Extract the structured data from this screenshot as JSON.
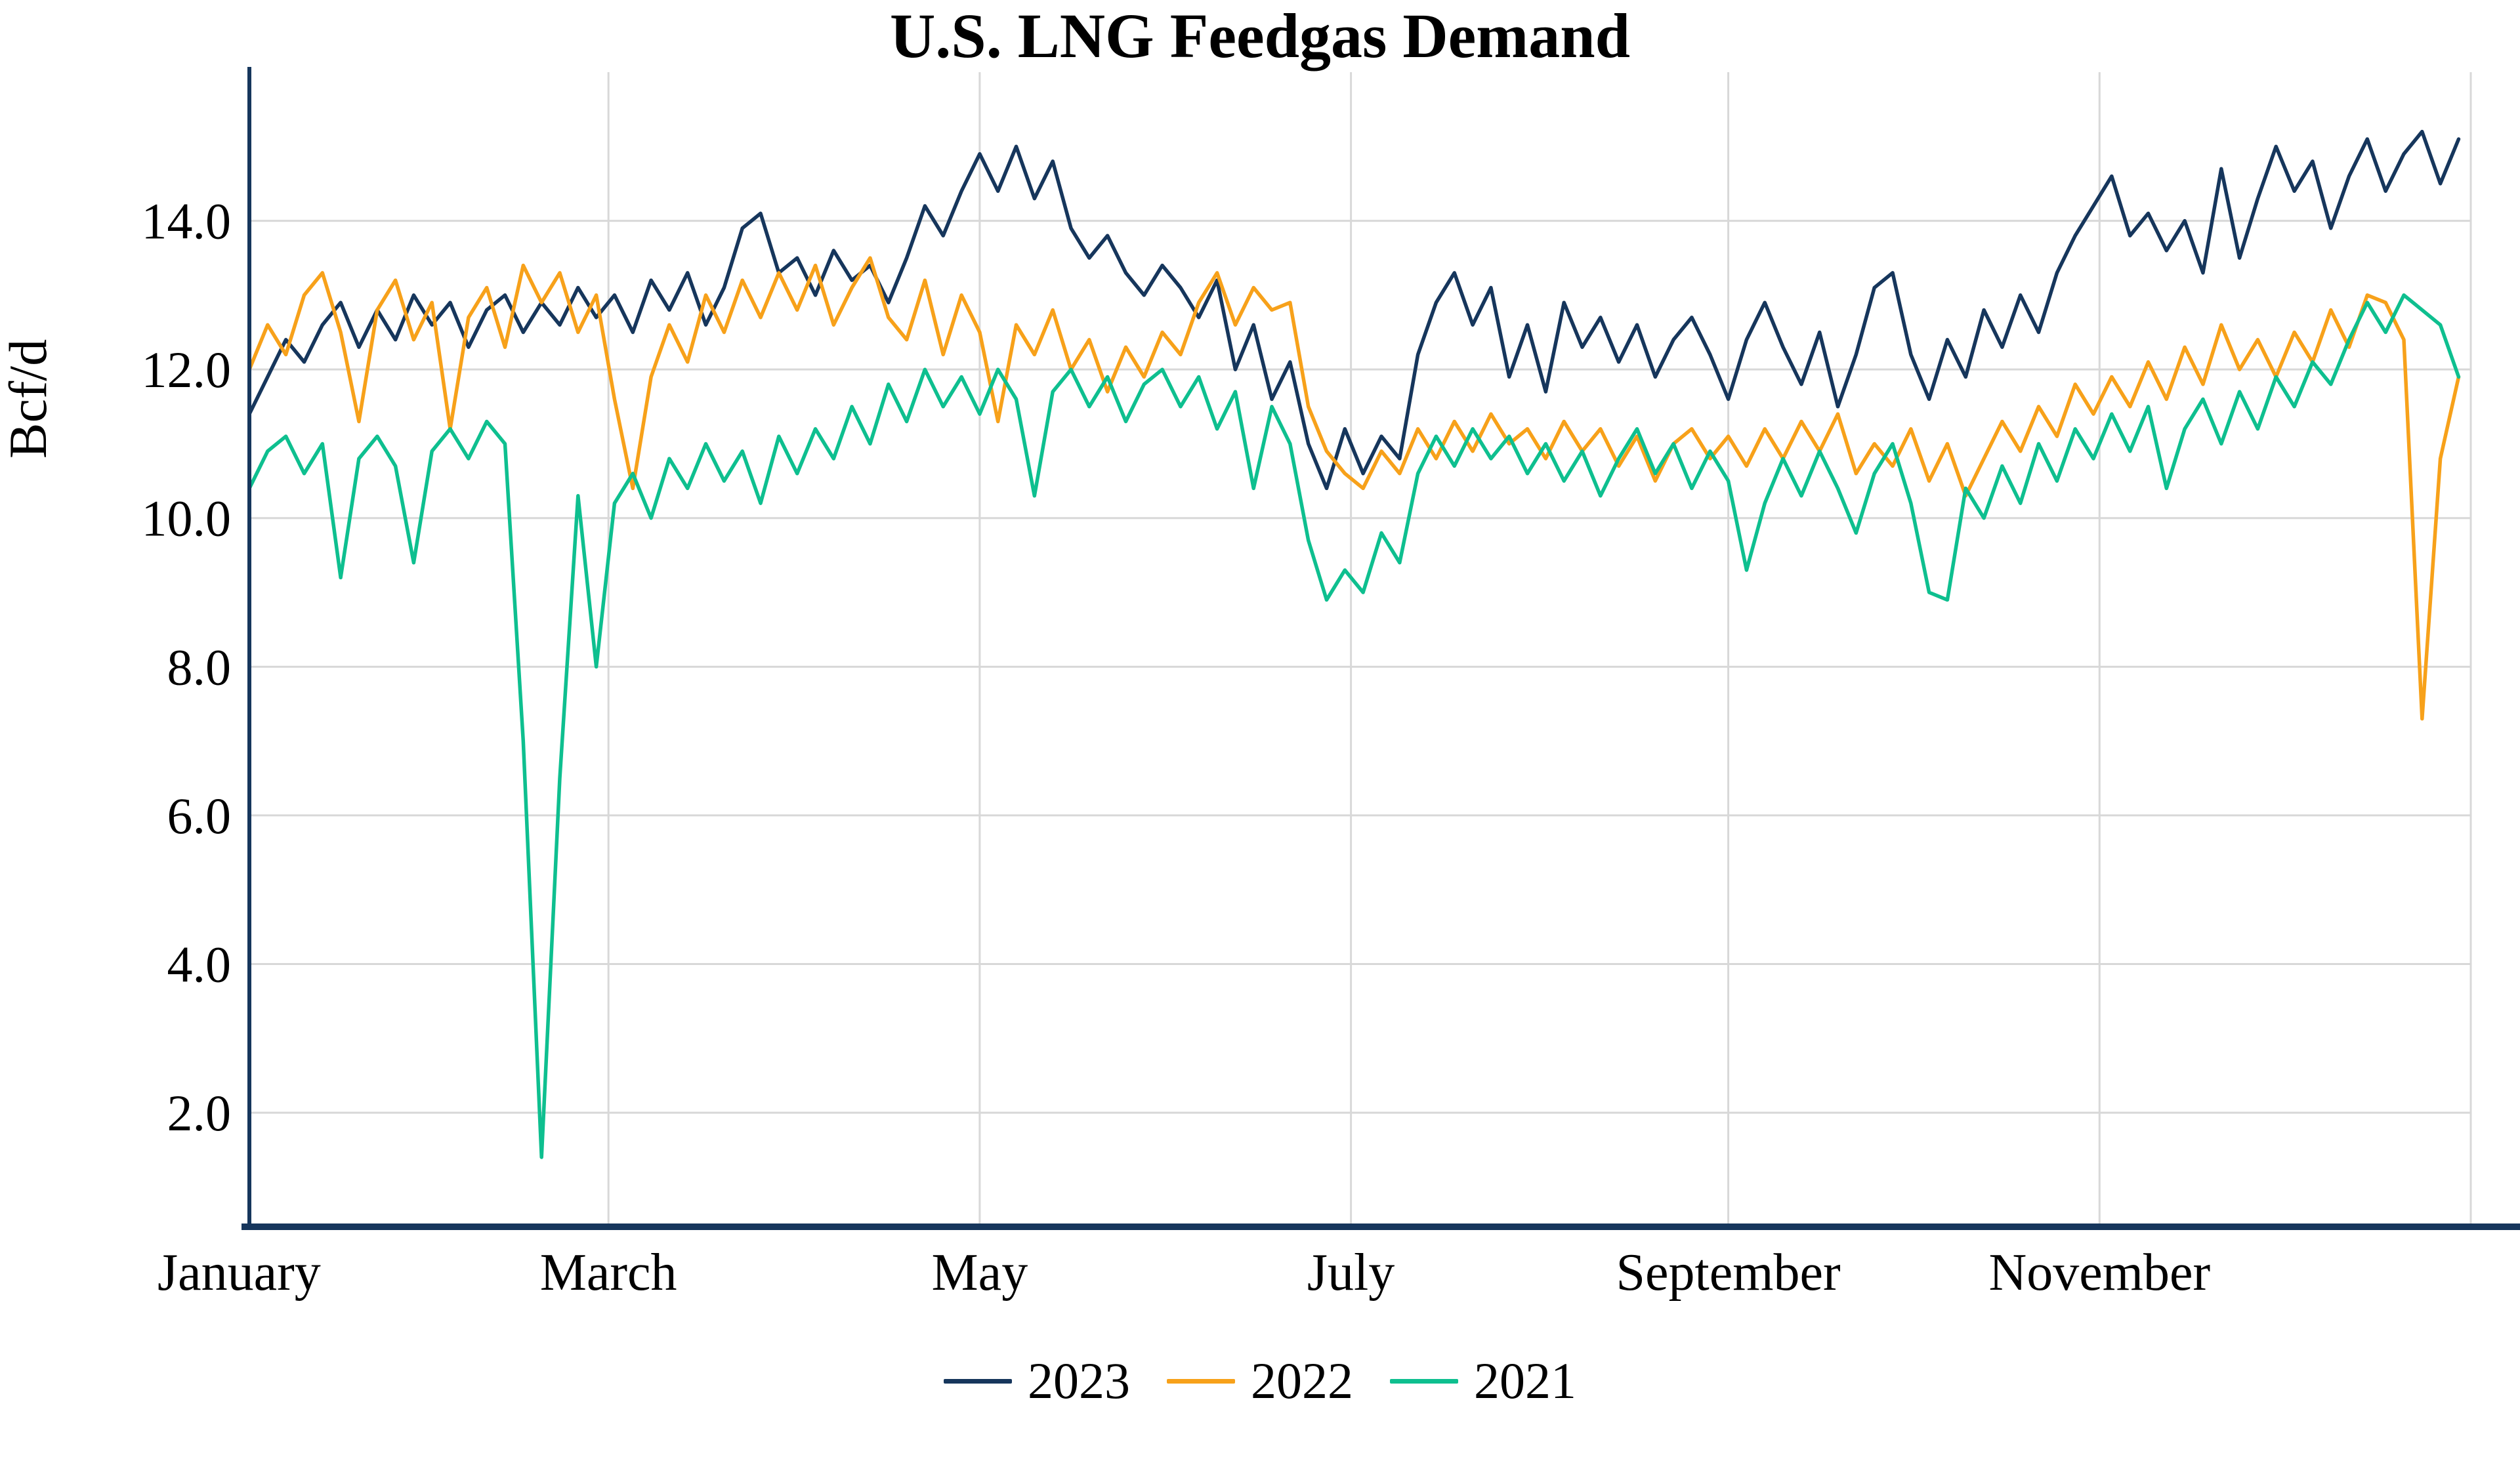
{
  "chart_data": {
    "type": "line",
    "title": "U.S. LNG Feedgas Demand",
    "xlabel": "",
    "ylabel": "Bcf/d",
    "ylim": [
      0.5,
      16.0
    ],
    "grid": true,
    "legend_position": "bottom",
    "y_ticks": [
      {
        "value": 2,
        "label": "2.0"
      },
      {
        "value": 4,
        "label": "4.0"
      },
      {
        "value": 6,
        "label": "6.0"
      },
      {
        "value": 8,
        "label": "8.0"
      },
      {
        "value": 10,
        "label": "10.0"
      },
      {
        "value": 12,
        "label": "12.0"
      },
      {
        "value": 14,
        "label": "14.0"
      }
    ],
    "x_ticks": [
      {
        "label": "January",
        "day": 1
      },
      {
        "label": "March",
        "day": 60
      },
      {
        "label": "May",
        "day": 121
      },
      {
        "label": "July",
        "day": 182
      },
      {
        "label": "September",
        "day": 244
      },
      {
        "label": "November",
        "day": 305
      }
    ],
    "x_gridline_days": [
      60,
      121,
      182,
      244,
      305,
      366
    ],
    "x_domain_days": [
      1,
      366
    ],
    "start_day": 1,
    "step_days": 3,
    "axis_color": "#16365c",
    "grid_color": "#d8d8d8",
    "series": [
      {
        "name": "2023",
        "color": "#16365c",
        "values": [
          11.4,
          11.9,
          12.4,
          12.1,
          12.6,
          12.9,
          12.3,
          12.8,
          12.4,
          13.0,
          12.6,
          12.9,
          12.3,
          12.8,
          13.0,
          12.5,
          12.9,
          12.6,
          13.1,
          12.7,
          13.0,
          12.5,
          13.2,
          12.8,
          13.3,
          12.6,
          13.1,
          13.9,
          14.1,
          13.3,
          13.5,
          13.0,
          13.6,
          13.2,
          13.4,
          12.9,
          13.5,
          14.2,
          13.8,
          14.4,
          14.9,
          14.4,
          15.0,
          14.3,
          14.8,
          13.9,
          13.5,
          13.8,
          13.3,
          13.0,
          13.4,
          13.1,
          12.7,
          13.2,
          12.0,
          12.6,
          11.6,
          12.1,
          11.0,
          10.4,
          11.2,
          10.6,
          11.1,
          10.8,
          12.2,
          12.9,
          13.3,
          12.6,
          13.1,
          11.9,
          12.6,
          11.7,
          12.9,
          12.3,
          12.7,
          12.1,
          12.6,
          11.9,
          12.4,
          12.7,
          12.2,
          11.6,
          12.4,
          12.9,
          12.3,
          11.8,
          12.5,
          11.5,
          12.2,
          13.1,
          13.3,
          12.2,
          11.6,
          12.4,
          11.9,
          12.8,
          12.3,
          13.0,
          12.5,
          13.3,
          13.8,
          14.2,
          14.6,
          13.8,
          14.1,
          13.6,
          14.0,
          13.3,
          14.7,
          13.5,
          14.3,
          15.0,
          14.4,
          14.8,
          13.9,
          14.6,
          15.1,
          14.4,
          14.9,
          15.2,
          14.5,
          15.1
        ]
      },
      {
        "name": "2022",
        "color": "#f7a11a",
        "values": [
          12.0,
          12.6,
          12.2,
          13.0,
          13.3,
          12.5,
          11.3,
          12.8,
          13.2,
          12.4,
          12.9,
          11.2,
          12.7,
          13.1,
          12.3,
          13.4,
          12.9,
          13.3,
          12.5,
          13.0,
          11.6,
          10.4,
          11.9,
          12.6,
          12.1,
          13.0,
          12.5,
          13.2,
          12.7,
          13.3,
          12.8,
          13.4,
          12.6,
          13.1,
          13.5,
          12.7,
          12.4,
          13.2,
          12.2,
          13.0,
          12.5,
          11.3,
          12.6,
          12.2,
          12.8,
          12.0,
          12.4,
          11.7,
          12.3,
          11.9,
          12.5,
          12.2,
          12.9,
          13.3,
          12.6,
          13.1,
          12.8,
          12.9,
          11.5,
          10.9,
          10.6,
          10.4,
          10.9,
          10.6,
          11.2,
          10.8,
          11.3,
          10.9,
          11.4,
          11.0,
          11.2,
          10.8,
          11.3,
          10.9,
          11.2,
          10.7,
          11.1,
          10.5,
          11.0,
          11.2,
          10.8,
          11.1,
          10.7,
          11.2,
          10.8,
          11.3,
          10.9,
          11.4,
          10.6,
          11.0,
          10.7,
          11.2,
          10.5,
          11.0,
          10.3,
          10.8,
          11.3,
          10.9,
          11.5,
          11.1,
          11.8,
          11.4,
          11.9,
          11.5,
          12.1,
          11.6,
          12.3,
          11.8,
          12.6,
          12.0,
          12.4,
          11.9,
          12.5,
          12.1,
          12.8,
          12.3,
          13.0,
          12.9,
          12.4,
          7.3,
          10.8,
          11.9
        ]
      },
      {
        "name": "2021",
        "color": "#0ebf8f",
        "values": [
          10.4,
          10.9,
          11.1,
          10.6,
          11.0,
          9.2,
          10.8,
          11.1,
          10.7,
          9.4,
          10.9,
          11.2,
          10.8,
          11.3,
          11.0,
          7.0,
          1.4,
          6.5,
          10.3,
          8.0,
          10.2,
          10.6,
          10.0,
          10.8,
          10.4,
          11.0,
          10.5,
          10.9,
          10.2,
          11.1,
          10.6,
          11.2,
          10.8,
          11.5,
          11.0,
          11.8,
          11.3,
          12.0,
          11.5,
          11.9,
          11.4,
          12.0,
          11.6,
          10.3,
          11.7,
          12.0,
          11.5,
          11.9,
          11.3,
          11.8,
          12.0,
          11.5,
          11.9,
          11.2,
          11.7,
          10.4,
          11.5,
          11.0,
          9.7,
          8.9,
          9.3,
          9.0,
          9.8,
          9.4,
          10.6,
          11.1,
          10.7,
          11.2,
          10.8,
          11.1,
          10.6,
          11.0,
          10.5,
          10.9,
          10.3,
          10.8,
          11.2,
          10.6,
          11.0,
          10.4,
          10.9,
          10.5,
          9.3,
          10.2,
          10.8,
          10.3,
          10.9,
          10.4,
          9.8,
          10.6,
          11.0,
          10.2,
          9.0,
          8.9,
          10.4,
          10.0,
          10.7,
          10.2,
          11.0,
          10.5,
          11.2,
          10.8,
          11.4,
          10.9,
          11.5,
          10.4,
          11.2,
          11.6,
          11.0,
          11.7,
          11.2,
          11.9,
          11.5,
          12.1,
          11.8,
          12.4,
          12.9,
          12.5,
          13.0,
          12.8,
          12.6,
          11.9
        ]
      }
    ]
  }
}
